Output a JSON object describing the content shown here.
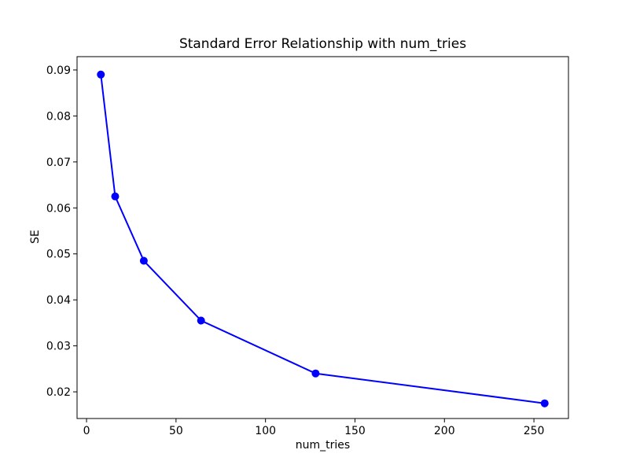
{
  "figure": {
    "background": "#ffffff",
    "spine_color": "#000000"
  },
  "chart_data": {
    "type": "line",
    "title": "Standard Error Relationship with num_tries",
    "xlabel": "num_tries",
    "ylabel": "SE",
    "x": [
      8,
      16,
      32,
      64,
      128,
      256
    ],
    "y": [
      0.089,
      0.0625,
      0.0485,
      0.0355,
      0.024,
      0.0175
    ],
    "line_color": "#0000ff",
    "marker": "circle",
    "marker_color": "#0000ff",
    "x_ticks": [
      0,
      50,
      100,
      150,
      200,
      250
    ],
    "y_ticks": [
      0.02,
      0.03,
      0.04,
      0.05,
      0.06,
      0.07,
      0.08,
      0.09
    ],
    "y_tick_decimals": 2,
    "xlim": [
      -5.3,
      269.3
    ],
    "ylim": [
      0.0142,
      0.0929
    ],
    "grid": false,
    "legend": "none"
  }
}
